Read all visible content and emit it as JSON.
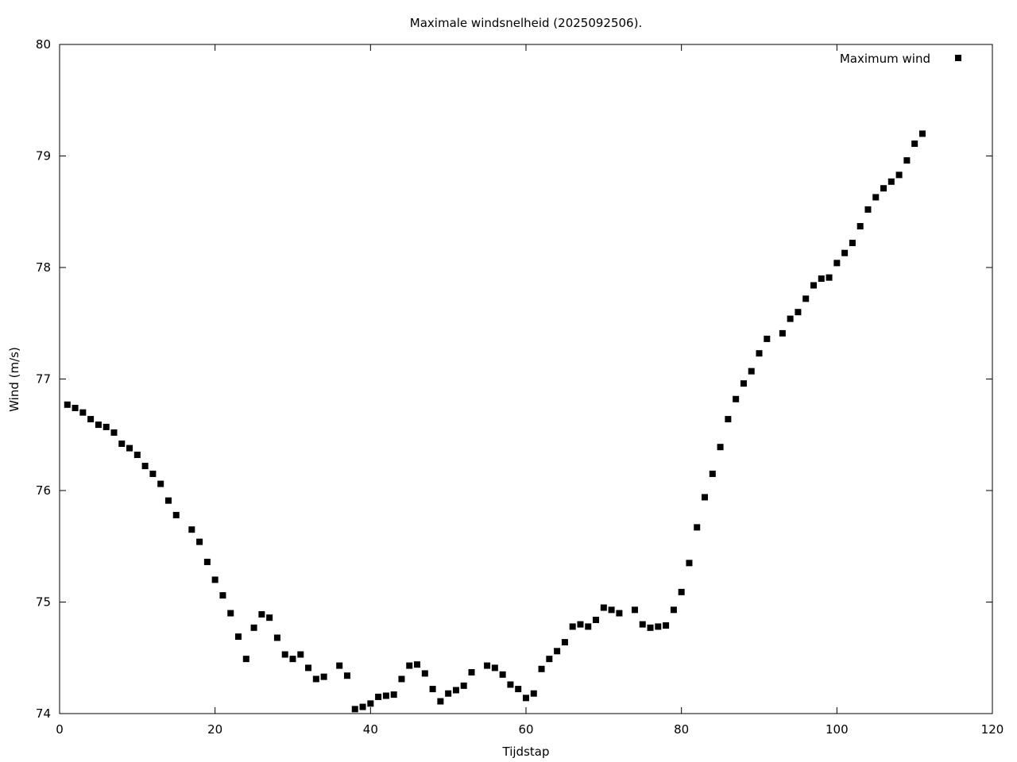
{
  "chart_data": {
    "type": "scatter",
    "title": "Maximale windsnelheid (2025092506).",
    "xlabel": "Tijdstap",
    "ylabel": "Wind (m/s)",
    "xlim": [
      0,
      120
    ],
    "ylim": [
      74,
      80
    ],
    "xticks": [
      0,
      20,
      40,
      60,
      80,
      100,
      120
    ],
    "yticks": [
      74,
      75,
      76,
      77,
      78,
      79,
      80
    ],
    "grid": false,
    "legend_position": "top-right",
    "series": [
      {
        "name": "Maximum wind",
        "color": "#000000",
        "marker": "square",
        "x": [
          1,
          2,
          3,
          4,
          5,
          6,
          7,
          8,
          9,
          10,
          11,
          12,
          13,
          14,
          15,
          17,
          18,
          19,
          20,
          21,
          22,
          23,
          24,
          25,
          26,
          27,
          28,
          29,
          30,
          31,
          32,
          33,
          34,
          36,
          37,
          38,
          39,
          40,
          41,
          42,
          43,
          44,
          45,
          46,
          47,
          48,
          49,
          50,
          51,
          52,
          53,
          55,
          56,
          57,
          58,
          59,
          60,
          61,
          62,
          63,
          64,
          65,
          66,
          67,
          68,
          69,
          70,
          71,
          72,
          74,
          75,
          76,
          77,
          78,
          79,
          80,
          81,
          82,
          83,
          84,
          85,
          86,
          87,
          88,
          89,
          90,
          91,
          93,
          94,
          95,
          96,
          97,
          98,
          99,
          100,
          101,
          102,
          103,
          104,
          105,
          106,
          107,
          108,
          109,
          110,
          111
        ],
        "y": [
          76.77,
          76.74,
          76.7,
          76.64,
          76.59,
          76.57,
          76.52,
          76.42,
          76.38,
          76.32,
          76.22,
          76.15,
          76.06,
          75.91,
          75.78,
          75.65,
          75.54,
          75.36,
          75.2,
          75.06,
          74.9,
          74.69,
          74.49,
          74.77,
          74.89,
          74.86,
          74.68,
          74.53,
          74.49,
          74.53,
          74.41,
          74.31,
          74.33,
          74.43,
          74.34,
          74.04,
          74.06,
          74.09,
          74.15,
          74.16,
          74.17,
          74.31,
          74.43,
          74.44,
          74.36,
          74.22,
          74.11,
          74.18,
          74.21,
          74.25,
          74.37,
          74.43,
          74.41,
          74.35,
          74.26,
          74.22,
          74.14,
          74.18,
          74.4,
          74.49,
          74.56,
          74.64,
          74.78,
          74.8,
          74.78,
          74.84,
          74.95,
          74.93,
          74.9,
          74.93,
          74.8,
          74.77,
          74.78,
          74.79,
          74.93,
          75.09,
          75.35,
          75.67,
          75.94,
          76.15,
          76.39,
          76.64,
          76.82,
          76.96,
          77.07,
          77.23,
          77.36,
          77.41,
          77.54,
          77.6,
          77.72,
          77.84,
          77.9,
          77.91,
          78.04,
          78.13,
          78.22,
          78.37,
          78.52,
          78.63,
          78.71,
          78.77,
          78.83,
          78.96,
          79.11,
          79.2
        ]
      }
    ]
  }
}
